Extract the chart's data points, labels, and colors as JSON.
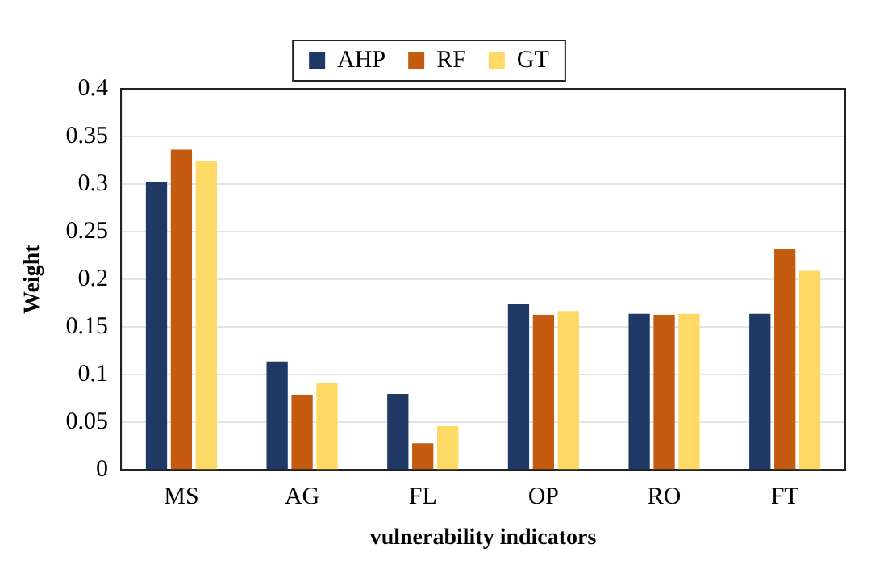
{
  "chart_data": {
    "type": "bar",
    "xlabel": "vulnerability indicators",
    "ylabel": "Weight",
    "categories": [
      "MS",
      "AG",
      "FL",
      "OP",
      "RO",
      "FT"
    ],
    "series": [
      {
        "name": "AHP",
        "color": "#203864",
        "values": [
          0.302,
          0.114,
          0.08,
          0.174,
          0.164,
          0.164
        ]
      },
      {
        "name": "RF",
        "color": "#c55a11",
        "values": [
          0.336,
          0.079,
          0.028,
          0.163,
          0.163,
          0.232
        ]
      },
      {
        "name": "GT",
        "color": "#ffd966",
        "values": [
          0.324,
          0.091,
          0.046,
          0.167,
          0.164,
          0.209
        ]
      }
    ],
    "ylim": [
      0,
      0.4
    ],
    "yticks": [
      0,
      0.05,
      0.1,
      0.15,
      0.2,
      0.25,
      0.3,
      0.35,
      0.4
    ],
    "grid": "y",
    "legend": "top"
  }
}
